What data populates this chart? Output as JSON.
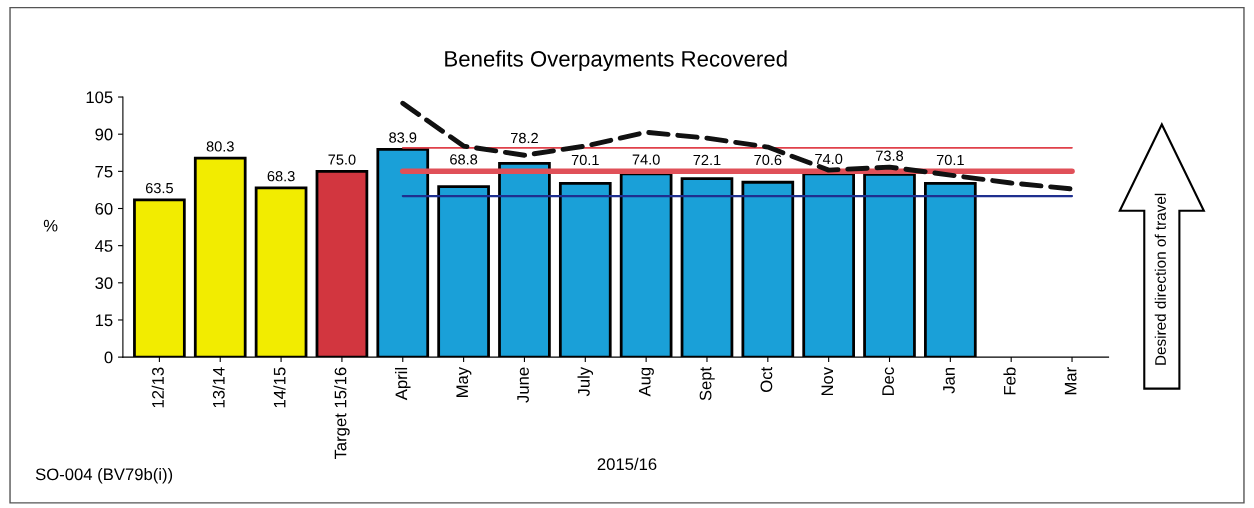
{
  "chart_data": {
    "type": "bar",
    "title": "Benefits Overpayments Recovered",
    "xlabel": "2015/16",
    "ylabel": "%",
    "categories": [
      "12/13",
      "13/14",
      "14/15",
      "Target 15/16",
      "April",
      "May",
      "June",
      "July",
      "Aug",
      "Sept",
      "Oct",
      "Nov",
      "Dec",
      "Jan",
      "Feb",
      "Mar"
    ],
    "series": [
      {
        "values": [
          63.5,
          80.3,
          68.3,
          75.0,
          83.9,
          68.8,
          78.2,
          70.1,
          74.0,
          72.1,
          70.6,
          74.0,
          73.8,
          70.1,
          null,
          null
        ],
        "colors": [
          "#f2ec00",
          "#f2ec00",
          "#f2ec00",
          "#d2363f",
          "#1aa0d8",
          "#1aa0d8",
          "#1aa0d8",
          "#1aa0d8",
          "#1aa0d8",
          "#1aa0d8",
          "#1aa0d8",
          "#1aa0d8",
          "#1aa0d8",
          "#1aa0d8",
          "#1aa0d8",
          "#1aa0d8"
        ],
        "value_labels": [
          "63.5",
          "80.3",
          "68.3",
          "75.0",
          "83.9",
          "68.8",
          "78.2",
          "70.1",
          "74.0",
          "72.1",
          "70.6",
          "74.0",
          "73.8",
          "70.1",
          null,
          null
        ]
      },
      {
        "type": "line",
        "color": "#e0404a",
        "values": [
          null,
          null,
          null,
          null,
          84.5,
          84.5,
          84.5,
          84.5,
          84.5,
          84.5,
          84.5,
          84.5,
          84.5,
          84.5,
          84.5,
          84.5
        ],
        "line_style": "solid"
      },
      {
        "type": "line",
        "color": "#e05058",
        "values": [
          null,
          null,
          null,
          null,
          75,
          75,
          75,
          75,
          75,
          75,
          75,
          75,
          75,
          75,
          75,
          75
        ],
        "line_style": "solid"
      },
      {
        "type": "line",
        "color": "#1f2f8f",
        "values": [
          null,
          null,
          null,
          null,
          65,
          65,
          65,
          65,
          65,
          65,
          65,
          65,
          65,
          65,
          65,
          65
        ],
        "line_style": "solid"
      },
      {
        "type": "line",
        "color": "#111111",
        "values": [
          null,
          null,
          null,
          null,
          102.5,
          85.2,
          81.5,
          85.2,
          90.8,
          88.4,
          84.8,
          75.5,
          76.7,
          73.5,
          70.3,
          67.9
        ],
        "line_style": "dashed"
      }
    ],
    "ylim": [
      0,
      105
    ],
    "yticks": [
      0,
      15,
      30,
      45,
      60,
      75,
      90,
      105
    ],
    "grid": false,
    "legend": false,
    "annotations": [
      "SO-004 (BV79b(i))",
      "Desired direction of travel"
    ]
  }
}
